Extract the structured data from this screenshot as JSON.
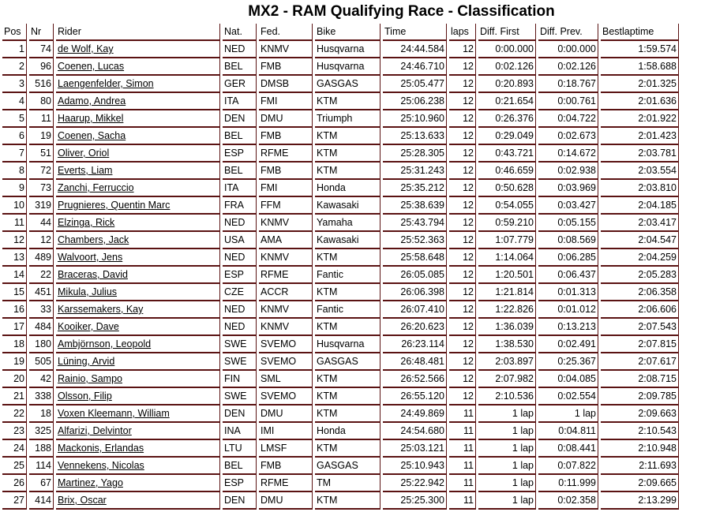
{
  "title": "MX2 - RAM Qualifying Race - Classification",
  "columns": [
    "Pos",
    "Nr",
    "Rider",
    "Nat.",
    "Fed.",
    "Bike",
    "Time",
    "laps",
    "Diff. First",
    "Diff. Prev.",
    "Bestlaptime"
  ],
  "colors": {
    "border": "#5a1212",
    "text": "#000000"
  },
  "rows": [
    [
      "1",
      "74",
      "de Wolf, Kay",
      "NED",
      "KNMV",
      "Husqvarna",
      "24:44.584",
      "12",
      "0:00.000",
      "0:00.000",
      "1:59.574"
    ],
    [
      "2",
      "96",
      "Coenen, Lucas",
      "BEL",
      "FMB",
      "Husqvarna",
      "24:46.710",
      "12",
      "0:02.126",
      "0:02.126",
      "1:58.688"
    ],
    [
      "3",
      "516",
      "Laengenfelder, Simon",
      "GER",
      "DMSB",
      "GASGAS",
      "25:05.477",
      "12",
      "0:20.893",
      "0:18.767",
      "2:01.325"
    ],
    [
      "4",
      "80",
      "Adamo, Andrea",
      "ITA",
      "FMI",
      "KTM",
      "25:06.238",
      "12",
      "0:21.654",
      "0:00.761",
      "2:01.636"
    ],
    [
      "5",
      "11",
      "Haarup, Mikkel",
      "DEN",
      "DMU",
      "Triumph",
      "25:10.960",
      "12",
      "0:26.376",
      "0:04.722",
      "2:01.922"
    ],
    [
      "6",
      "19",
      "Coenen, Sacha",
      "BEL",
      "FMB",
      "KTM",
      "25:13.633",
      "12",
      "0:29.049",
      "0:02.673",
      "2:01.423"
    ],
    [
      "7",
      "51",
      "Oliver, Oriol",
      "ESP",
      "RFME",
      "KTM",
      "25:28.305",
      "12",
      "0:43.721",
      "0:14.672",
      "2:03.781"
    ],
    [
      "8",
      "72",
      "Everts, Liam",
      "BEL",
      "FMB",
      "KTM",
      "25:31.243",
      "12",
      "0:46.659",
      "0:02.938",
      "2:03.554"
    ],
    [
      "9",
      "73",
      "Zanchi, Ferruccio",
      "ITA",
      "FMI",
      "Honda",
      "25:35.212",
      "12",
      "0:50.628",
      "0:03.969",
      "2:03.810"
    ],
    [
      "10",
      "319",
      "Prugnieres, Quentin Marc",
      "FRA",
      "FFM",
      "Kawasaki",
      "25:38.639",
      "12",
      "0:54.055",
      "0:03.427",
      "2:04.185"
    ],
    [
      "11",
      "44",
      "Elzinga, Rick",
      "NED",
      "KNMV",
      "Yamaha",
      "25:43.794",
      "12",
      "0:59.210",
      "0:05.155",
      "2:03.417"
    ],
    [
      "12",
      "12",
      "Chambers, Jack",
      "USA",
      "AMA",
      "Kawasaki",
      "25:52.363",
      "12",
      "1:07.779",
      "0:08.569",
      "2:04.547"
    ],
    [
      "13",
      "489",
      "Walvoort, Jens",
      "NED",
      "KNMV",
      "KTM",
      "25:58.648",
      "12",
      "1:14.064",
      "0:06.285",
      "2:04.259"
    ],
    [
      "14",
      "22",
      "Braceras, David",
      "ESP",
      "RFME",
      "Fantic",
      "26:05.085",
      "12",
      "1:20.501",
      "0:06.437",
      "2:05.283"
    ],
    [
      "15",
      "451",
      "Mikula, Julius",
      "CZE",
      "ACCR",
      "KTM",
      "26:06.398",
      "12",
      "1:21.814",
      "0:01.313",
      "2:06.358"
    ],
    [
      "16",
      "33",
      "Karssemakers, Kay",
      "NED",
      "KNMV",
      "Fantic",
      "26:07.410",
      "12",
      "1:22.826",
      "0:01.012",
      "2:06.606"
    ],
    [
      "17",
      "484",
      "Kooiker, Dave",
      "NED",
      "KNMV",
      "KTM",
      "26:20.623",
      "12",
      "1:36.039",
      "0:13.213",
      "2:07.543"
    ],
    [
      "18",
      "180",
      "Ambjörnson, Leopold",
      "SWE",
      "SVEMO",
      "Husqvarna",
      "26:23.114",
      "12",
      "1:38.530",
      "0:02.491",
      "2:07.815"
    ],
    [
      "19",
      "505",
      "Lüning, Arvid",
      "SWE",
      "SVEMO",
      "GASGAS",
      "26:48.481",
      "12",
      "2:03.897",
      "0:25.367",
      "2:07.617"
    ],
    [
      "20",
      "42",
      "Rainio, Sampo",
      "FIN",
      "SML",
      "KTM",
      "26:52.566",
      "12",
      "2:07.982",
      "0:04.085",
      "2:08.715"
    ],
    [
      "21",
      "338",
      "Olsson, Filip",
      "SWE",
      "SVEMO",
      "KTM",
      "26:55.120",
      "12",
      "2:10.536",
      "0:02.554",
      "2:09.785"
    ],
    [
      "22",
      "18",
      "Voxen Kleemann, William",
      "DEN",
      "DMU",
      "KTM",
      "24:49.869",
      "11",
      "1 lap",
      "1 lap",
      "2:09.663"
    ],
    [
      "23",
      "325",
      "Alfarizi, Delvintor",
      "INA",
      "IMI",
      "Honda",
      "24:54.680",
      "11",
      "1 lap",
      "0:04.811",
      "2:10.543"
    ],
    [
      "24",
      "188",
      "Mackonis, Erlandas",
      "LTU",
      "LMSF",
      "KTM",
      "25:03.121",
      "11",
      "1 lap",
      "0:08.441",
      "2:10.948"
    ],
    [
      "25",
      "114",
      "Vennekens, Nicolas",
      "BEL",
      "FMB",
      "GASGAS",
      "25:10.943",
      "11",
      "1 lap",
      "0:07.822",
      "2:11.693"
    ],
    [
      "26",
      "67",
      "Martinez, Yago",
      "ESP",
      "RFME",
      "TM",
      "25:22.942",
      "11",
      "1 lap",
      "0:11.999",
      "2:09.665"
    ],
    [
      "27",
      "414",
      "Brix, Oscar",
      "DEN",
      "DMU",
      "KTM",
      "25:25.300",
      "11",
      "1 lap",
      "0:02.358",
      "2:13.299"
    ]
  ]
}
